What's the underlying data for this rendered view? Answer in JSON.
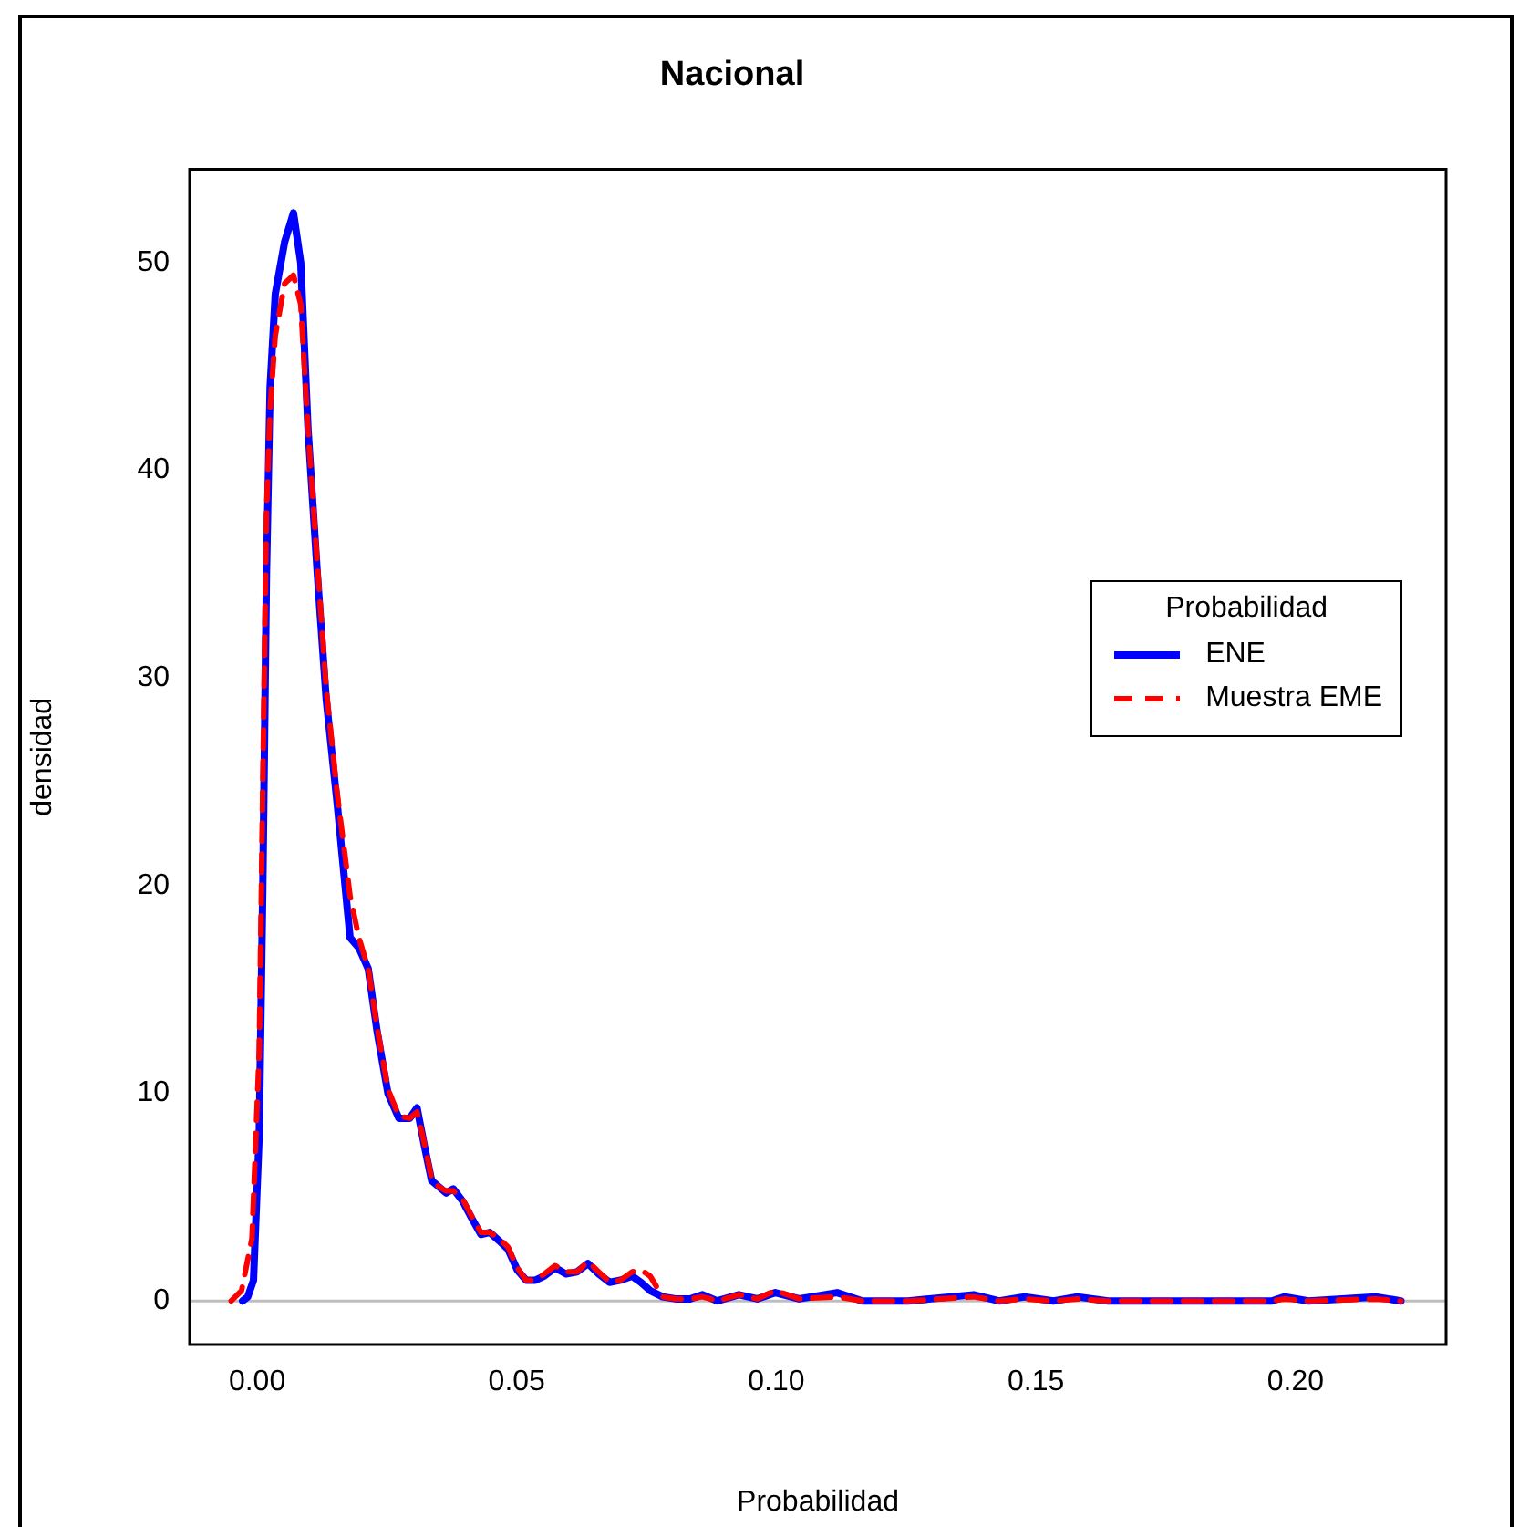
{
  "chart_data": {
    "type": "line",
    "title": "Nacional",
    "xlabel": "Probabilidad",
    "ylabel": "densidad",
    "legend_title": "Probabilidad",
    "legend": "right",
    "grid": false,
    "xlim": [
      -0.013,
      0.229
    ],
    "ylim": [
      -2.1,
      54.5
    ],
    "xticks": [
      {
        "value": 0,
        "label": "0.00"
      },
      {
        "value": 0.05,
        "label": "0.05"
      },
      {
        "value": 0.1,
        "label": "0.10"
      },
      {
        "value": 0.15,
        "label": "0.15"
      },
      {
        "value": 0.2,
        "label": "0.20"
      }
    ],
    "yticks": [
      0,
      10,
      20,
      30,
      40,
      50
    ],
    "ref_lines": [
      {
        "axis": "y",
        "value": 0,
        "label": null,
        "color": "#bebebe"
      }
    ],
    "series": [
      {
        "name": "ENE",
        "color": "#0000ff",
        "line_style": "solid",
        "x": [
          -0.0028,
          -0.0018,
          -0.0007,
          0.0004,
          0.0011,
          0.0018,
          0.0025,
          0.0035,
          0.0053,
          0.007,
          0.0084,
          0.0098,
          0.0116,
          0.0133,
          0.0154,
          0.0179,
          0.0196,
          0.0214,
          0.0231,
          0.0252,
          0.0273,
          0.0294,
          0.0308,
          0.0322,
          0.0336,
          0.035,
          0.0364,
          0.0378,
          0.0396,
          0.0413,
          0.0431,
          0.0448,
          0.0466,
          0.0483,
          0.0501,
          0.0518,
          0.0536,
          0.0553,
          0.0574,
          0.0595,
          0.0616,
          0.0637,
          0.0658,
          0.0679,
          0.07,
          0.0722,
          0.0739,
          0.0757,
          0.0781,
          0.0806,
          0.0834,
          0.0858,
          0.0886,
          0.0928,
          0.0963,
          0.0998,
          0.1044,
          0.1117,
          0.1166,
          0.1254,
          0.138,
          0.1429,
          0.1478,
          0.1534,
          0.158,
          0.1639,
          0.1954,
          0.1979,
          0.2025,
          0.2154,
          0.2203
        ],
        "values": [
          0,
          0.2,
          1,
          8,
          20,
          35,
          44,
          48.5,
          51,
          52.4,
          50,
          42,
          35,
          29,
          24,
          17.5,
          17,
          16,
          13,
          10,
          8.8,
          8.8,
          9.3,
          7.5,
          5.8,
          5.5,
          5.2,
          5.4,
          4.8,
          4,
          3.2,
          3.3,
          2.9,
          2.5,
          1.5,
          1,
          1,
          1.2,
          1.6,
          1.3,
          1.4,
          1.8,
          1.3,
          0.9,
          1,
          1.2,
          0.9,
          0.5,
          0.2,
          0.1,
          0.1,
          0.3,
          0,
          0.3,
          0.1,
          0.4,
          0.1,
          0.4,
          0,
          0,
          0.3,
          0,
          0.2,
          0,
          0.2,
          0,
          0,
          0.2,
          0,
          0.2,
          0
        ]
      },
      {
        "name": "Muestra EME",
        "color": "#ff0000",
        "line_style": "dashed",
        "x": [
          -0.005,
          -0.003,
          -0.001,
          0.0004,
          0.0011,
          0.0018,
          0.0025,
          0.0035,
          0.0053,
          0.007,
          0.0084,
          0.0098,
          0.0116,
          0.0133,
          0.0154,
          0.0179,
          0.0196,
          0.0214,
          0.0231,
          0.0252,
          0.0273,
          0.0294,
          0.0308,
          0.0322,
          0.0336,
          0.035,
          0.0364,
          0.0378,
          0.0396,
          0.0413,
          0.0431,
          0.0448,
          0.0466,
          0.0483,
          0.0501,
          0.0518,
          0.0536,
          0.0553,
          0.0574,
          0.0595,
          0.0616,
          0.0637,
          0.0658,
          0.0679,
          0.07,
          0.0722,
          0.0739,
          0.0757,
          0.0781,
          0.0806,
          0.0834,
          0.0858,
          0.0886,
          0.0928,
          0.0963,
          0.0998,
          0.1044,
          0.1117,
          0.1166,
          0.1254,
          0.138,
          0.1429,
          0.1478,
          0.1534,
          0.158,
          0.1639,
          0.1954,
          0.1979,
          0.2025,
          0.2154,
          0.2203
        ],
        "values": [
          0,
          0.5,
          3,
          12,
          25,
          38,
          43,
          46.5,
          49,
          49.4,
          48,
          42,
          35.5,
          29.5,
          24.5,
          19.5,
          17.5,
          16,
          13.2,
          10.2,
          8.9,
          8.8,
          9.1,
          7.6,
          5.9,
          5.5,
          5.3,
          5.3,
          4.9,
          4.1,
          3.3,
          3.3,
          3,
          2.6,
          1.6,
          1,
          1,
          1.3,
          1.7,
          1.4,
          1.4,
          1.9,
          1.4,
          0.9,
          1,
          1.4,
          1.5,
          1.2,
          0.2,
          0.1,
          0.1,
          0.2,
          0,
          0.3,
          0.1,
          0.5,
          0.1,
          0.2,
          0,
          0,
          0.2,
          0,
          0.1,
          0,
          0.1,
          0,
          0,
          0.1,
          0,
          0.1,
          0
        ]
      }
    ]
  }
}
